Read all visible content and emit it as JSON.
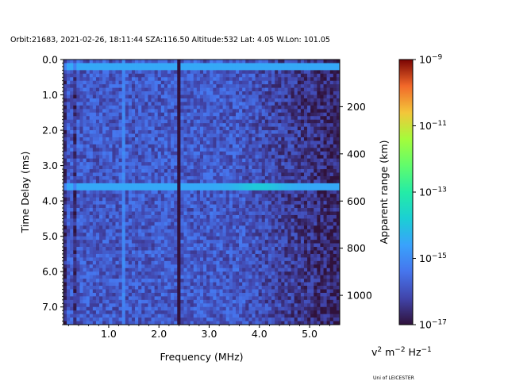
{
  "chart_data": {
    "type": "heatmap",
    "title": "Orbit:21683, 2021-02-26, 18:11:44 SZA:116.50 Altitude:532 Lat: 4.05 W.Lon: 101.05",
    "xlabel": "Frequency (MHz)",
    "ylabel": "Time Delay (ms)",
    "y2label": "Apparent range (km)",
    "xlim": [
      0.1,
      5.6
    ],
    "ylim": [
      7.5,
      0.0
    ],
    "x_ticks": [
      1.0,
      2.0,
      3.0,
      4.0,
      5.0
    ],
    "x_tick_labels": [
      "1.0",
      "2.0",
      "3.0",
      "4.0",
      "5.0"
    ],
    "y_ticks": [
      0.0,
      1.0,
      2.0,
      3.0,
      4.0,
      5.0,
      6.0,
      7.0
    ],
    "y_tick_labels": [
      "0.0",
      "1.0",
      "2.0",
      "3.0",
      "4.0",
      "5.0",
      "6.0",
      "7.0"
    ],
    "y2_ticks": [
      200,
      400,
      600,
      800,
      1000
    ],
    "y2_tick_labels": [
      "200",
      "400",
      "600",
      "800",
      "1000"
    ],
    "colorbar": {
      "scale": "log",
      "colormap": "turbo",
      "range": [
        1e-17,
        1e-09
      ],
      "tick_exponents": [
        -17,
        -15,
        -13,
        -11,
        -9
      ],
      "tick_labels": [
        "10",
        "10",
        "10",
        "10",
        "10"
      ],
      "tick_sups": [
        "−17",
        "−15",
        "−13",
        "−11",
        "−9"
      ]
    },
    "features": [
      {
        "kind": "horizontal-line",
        "time_delay_ms": 0.2,
        "log_value": -14.5,
        "description": "surface/transmit line"
      },
      {
        "kind": "horizontal-line",
        "time_delay_ms": 3.6,
        "log_value": -14.5,
        "peak_frequency_mhz": 4.0
      },
      {
        "kind": "vertical-line",
        "frequency_mhz": 1.32,
        "log_value": -15.0
      },
      {
        "kind": "vertical-line",
        "frequency_mhz": 2.4,
        "log_value": -17.0
      }
    ]
  },
  "units_label": {
    "base": "v",
    "sup1": "2",
    "mid": " m",
    "sup2": "−2",
    "end": " Hz",
    "sup3": "−1"
  },
  "credit": "Uni of LEICESTER"
}
